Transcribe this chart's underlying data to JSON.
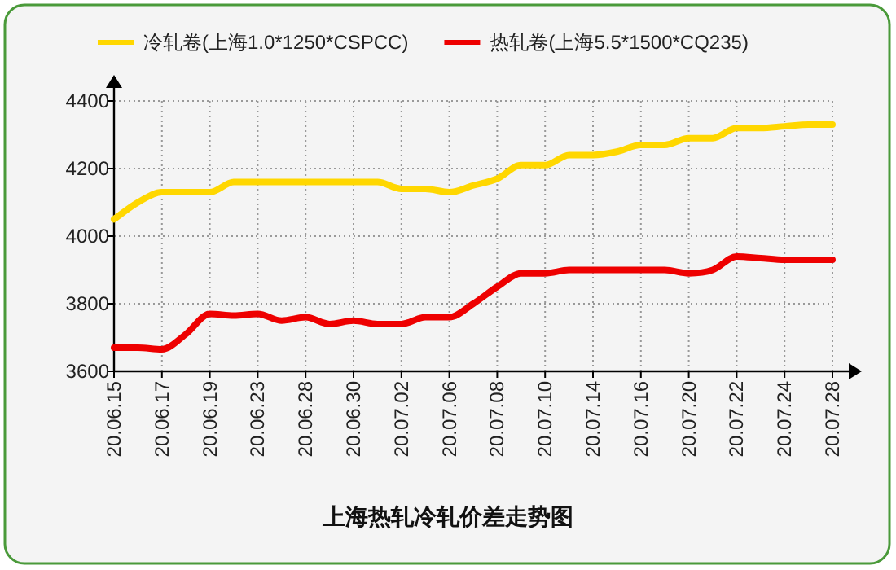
{
  "chart_data": {
    "type": "line",
    "title": "上海热轧冷轧价差走势图",
    "categories": [
      "20.06.15",
      null,
      "20.06.17",
      null,
      "20.06.19",
      null,
      "20.06.23",
      null,
      "20.06.28",
      null,
      "20.06.30",
      null,
      "20.07.02",
      null,
      "20.07.06",
      null,
      "20.07.08",
      null,
      "20.07.10",
      null,
      "20.07.14",
      null,
      "20.07.16",
      null,
      "20.07.20",
      null,
      "20.07.22",
      null,
      "20.07.24",
      null,
      "20.07.28"
    ],
    "series": [
      {
        "name": "冷轧卷(上海1.0*1250*CSPCC)",
        "color": "#ffd700",
        "values": [
          4050,
          4100,
          4130,
          4130,
          4130,
          4160,
          4160,
          4160,
          4160,
          4160,
          4160,
          4160,
          4140,
          4140,
          4130,
          4150,
          4170,
          4210,
          4210,
          4240,
          4240,
          4250,
          4270,
          4270,
          4290,
          4290,
          4320,
          4320,
          4325,
          4330,
          4330
        ]
      },
      {
        "name": "热轧卷(上海5.5*1500*CQ235)",
        "color": "#ee0000",
        "values": [
          3670,
          3670,
          3665,
          3710,
          3770,
          3765,
          3770,
          3750,
          3760,
          3740,
          3750,
          3740,
          3740,
          3760,
          3760,
          3800,
          3850,
          3890,
          3890,
          3900,
          3900,
          3900,
          3900,
          3900,
          3890,
          3900,
          3940,
          3935,
          3930,
          3930,
          3930
        ]
      }
    ],
    "ylim": [
      3600,
      4400
    ],
    "yticks": [
      3600,
      3800,
      4000,
      4200,
      4400
    ],
    "grid": true,
    "legend": "top"
  }
}
